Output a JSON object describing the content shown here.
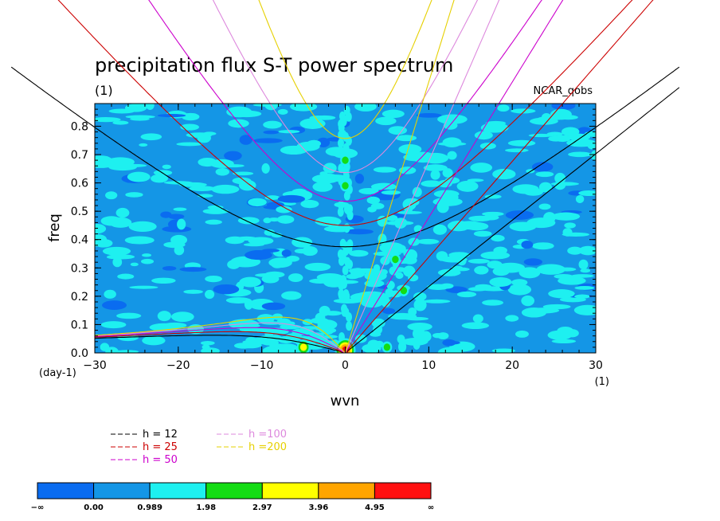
{
  "chart_data": {
    "type": "heatmap",
    "title": "precipitation flux S-T power spectrum",
    "subtitle": "(1)",
    "source_label": "NCAR_qobs",
    "xlabel": "wvn",
    "ylabel": "freq",
    "x_unit_label": "(1)",
    "y_unit_label": "(day-1)",
    "xlim": [
      -30,
      30
    ],
    "ylim": [
      0,
      0.88
    ],
    "x_ticks": [
      {
        "v": -30,
        "label": "−30"
      },
      {
        "v": -20,
        "label": "−20"
      },
      {
        "v": -10,
        "label": "−10"
      },
      {
        "v": 0,
        "label": "0"
      },
      {
        "v": 10,
        "label": "10"
      },
      {
        "v": 20,
        "label": "20"
      },
      {
        "v": 30,
        "label": "30"
      }
    ],
    "y_ticks": [
      {
        "v": 0.0,
        "label": "0.0"
      },
      {
        "v": 0.1,
        "label": "0.1"
      },
      {
        "v": 0.2,
        "label": "0.2"
      },
      {
        "v": 0.3,
        "label": "0.3"
      },
      {
        "v": 0.4,
        "label": "0.4"
      },
      {
        "v": 0.5,
        "label": "0.5"
      },
      {
        "v": 0.6,
        "label": "0.6"
      },
      {
        "v": 0.7,
        "label": "0.7"
      },
      {
        "v": 0.8,
        "label": "0.8"
      }
    ],
    "dispersion_curves": [
      {
        "name": "h = 12",
        "h": 12,
        "color": "#000000"
      },
      {
        "name": "h = 25",
        "h": 25,
        "color": "#cc0000"
      },
      {
        "name": "h = 50",
        "h": 50,
        "color": "#cc00cc"
      },
      {
        "name": "h =100",
        "h": 100,
        "color": "#dd88dd"
      },
      {
        "name": "h =200",
        "h": 200,
        "color": "#e6d000"
      }
    ],
    "colorbar": {
      "colors": [
        "#0a6cf0",
        "#1496e6",
        "#1ef0f0",
        "#14dc14",
        "#ffff00",
        "#ffa500",
        "#ff1010"
      ],
      "labels": [
        "−∞",
        "0.00",
        "0.989",
        "1.98",
        "2.97",
        "3.96",
        "4.95",
        "∞"
      ]
    },
    "field": {
      "background_level": 1,
      "hotspots": [
        {
          "x": -5,
          "y": 0.02,
          "level": 4
        },
        {
          "x": 0,
          "y": 0.01,
          "level": 6
        },
        {
          "x": 7,
          "y": 0.22,
          "level": 3
        },
        {
          "x": 6,
          "y": 0.33,
          "level": 3
        },
        {
          "x": 5,
          "y": 0.02,
          "level": 3
        },
        {
          "x": 0,
          "y": 0.68,
          "level": 3
        },
        {
          "x": 0,
          "y": 0.59,
          "level": 3
        }
      ]
    }
  }
}
